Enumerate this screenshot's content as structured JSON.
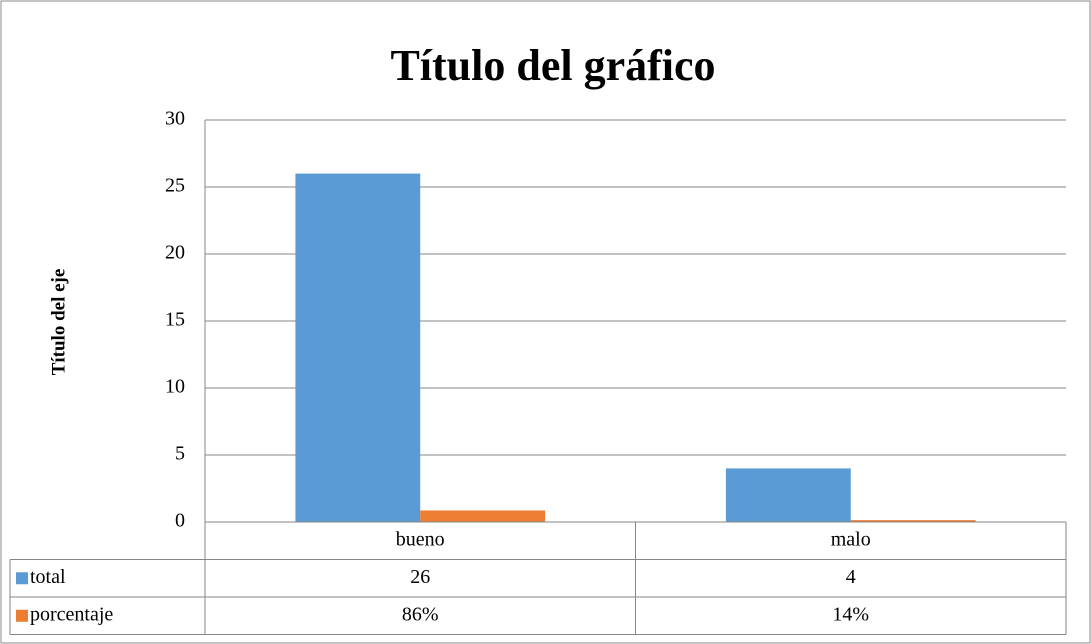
{
  "chart_data": {
    "type": "bar",
    "title": "Título del gráfico",
    "y_label": "Título del eje",
    "categories": [
      "bueno",
      "malo"
    ],
    "series": [
      {
        "name": "total",
        "color": "#5b9bd5",
        "values": [
          26,
          4
        ]
      },
      {
        "name": "porcentaje",
        "color": "#ed7d31",
        "values": [
          0.86,
          0.14
        ],
        "value_labels": [
          "86%",
          "14%"
        ]
      }
    ],
    "ylim": [
      0,
      30
    ],
    "yticks": [
      0,
      5,
      10,
      15,
      20,
      25,
      30
    ],
    "grid": true,
    "data_table": true
  }
}
